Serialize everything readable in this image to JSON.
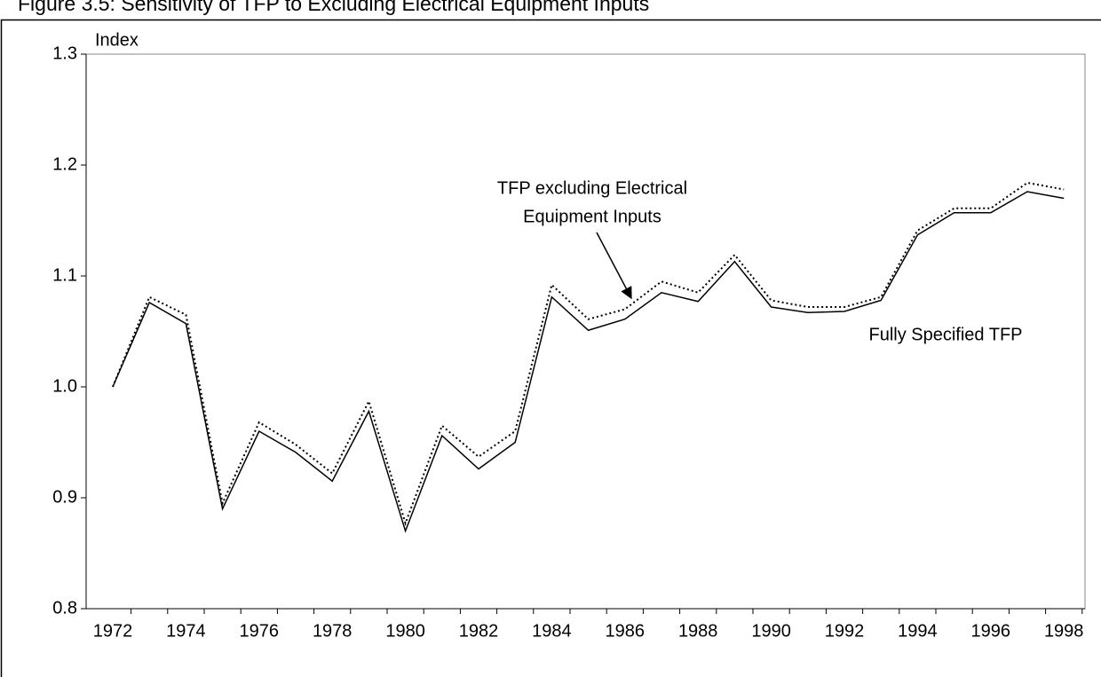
{
  "chart_data": {
    "type": "line",
    "title": "Figure 3.5: Sensitivity of TFP to Excluding Electrical Equipment Inputs",
    "y_label": "Index",
    "categories": [
      "1972",
      null,
      "1974",
      null,
      "1976",
      null,
      "1978",
      null,
      "1980",
      null,
      "1982",
      null,
      "1984",
      null,
      "1986",
      null,
      "1988",
      null,
      "1990",
      null,
      "1992",
      null,
      "1994",
      null,
      "1996",
      null,
      "1998"
    ],
    "series": [
      {
        "color": "#000000",
        "dash": false,
        "values": [
          1.0,
          1.076,
          1.057,
          0.89,
          0.96,
          0.941,
          0.915,
          0.978,
          0.87,
          0.956,
          0.926,
          0.95,
          1.081,
          1.051,
          1.061,
          1.085,
          1.077,
          1.113,
          1.072,
          1.067,
          1.068,
          1.078,
          1.137,
          1.157,
          1.157,
          1.176,
          1.17
        ]
      },
      {
        "color": "#000000",
        "dash": true,
        "values": [
          1.0,
          1.081,
          1.065,
          0.895,
          0.968,
          0.948,
          0.922,
          0.987,
          0.877,
          0.965,
          0.937,
          0.96,
          1.092,
          1.061,
          1.07,
          1.095,
          1.085,
          1.119,
          1.078,
          1.072,
          1.072,
          1.081,
          1.141,
          1.161,
          1.161,
          1.184,
          1.178
        ]
      }
    ],
    "annotations": [
      {
        "lines": [
          "TFP excluding Electrical",
          "Equipment Inputs"
        ]
      },
      {
        "lines": [
          "Fully Specified TFP"
        ]
      }
    ],
    "ylim": [
      0.8,
      1.3
    ],
    "yticks": [
      {
        "value": 0.8,
        "label": "0.8"
      },
      {
        "value": 0.9,
        "label": "0.9"
      },
      {
        "value": 1.0,
        "label": "1.0"
      },
      {
        "value": 1.1,
        "label": "1.1"
      },
      {
        "value": 1.2,
        "label": "1.2"
      },
      {
        "value": 1.3,
        "label": "1.3"
      }
    ],
    "grid": false
  }
}
